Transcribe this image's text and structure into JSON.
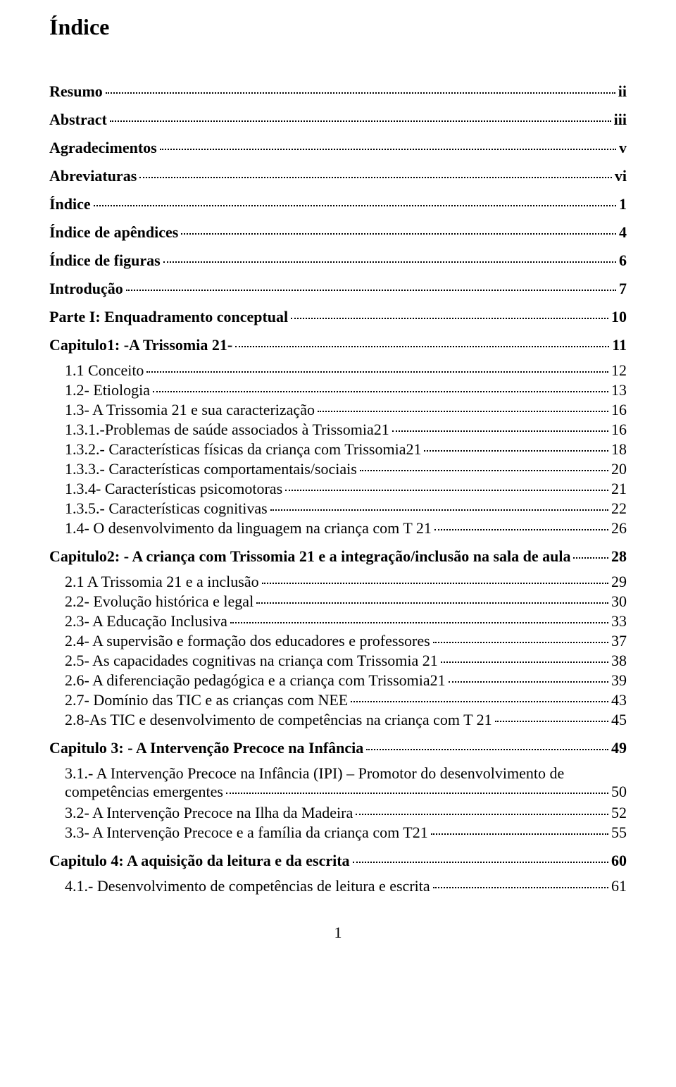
{
  "title": "Índice",
  "footer_page": "1",
  "entries": [
    {
      "level": 0,
      "label": "Resumo",
      "page": "ii"
    },
    {
      "level": 0,
      "label": "Abstract",
      "page": "iii"
    },
    {
      "level": 0,
      "label": "Agradecimentos",
      "page": "v"
    },
    {
      "level": 0,
      "label": "Abreviaturas",
      "page": "vi"
    },
    {
      "level": 0,
      "label": "Índice",
      "page": "1"
    },
    {
      "level": 0,
      "label": "Índice de apêndices",
      "page": "4"
    },
    {
      "level": 0,
      "label": "Índice de figuras",
      "page": "6"
    },
    {
      "level": 0,
      "label": "Introdução",
      "page": "7"
    },
    {
      "level": 0,
      "label": "Parte I: Enquadramento conceptual",
      "page": "10"
    },
    {
      "level": 0,
      "label": "Capitulo1: -A Trissomia 21-",
      "page": "11"
    },
    {
      "level": 1,
      "label": "1.1 Conceito",
      "page": "12"
    },
    {
      "level": 1,
      "label": "1.2- Etiologia",
      "page": "13"
    },
    {
      "level": 1,
      "label": "1.3- A Trissomia 21 e sua caracterização",
      "page": "16"
    },
    {
      "level": 2,
      "label": "1.3.1.-Problemas de saúde associados à Trissomia21",
      "page": "16"
    },
    {
      "level": 2,
      "label": "1.3.2.- Características físicas da criança com Trissomia21",
      "page": "18"
    },
    {
      "level": 2,
      "label": "1.3.3.- Características comportamentais/sociais",
      "page": "20"
    },
    {
      "level": 2,
      "label": "1.3.4- Características psicomotoras",
      "page": "21"
    },
    {
      "level": 2,
      "label": "1.3.5.- Características cognitivas",
      "page": "22"
    },
    {
      "level": 1,
      "label": "1.4- O desenvolvimento da linguagem na criança com T 21",
      "page": "26"
    },
    {
      "level": 0,
      "label": "Capitulo2: - A criança com Trissomia 21 e a integração/inclusão na sala de aula",
      "page": "28"
    },
    {
      "level": 1,
      "label": "2.1 A Trissomia 21 e a inclusão",
      "page": "29"
    },
    {
      "level": 1,
      "label": "2.2- Evolução histórica e legal",
      "page": "30"
    },
    {
      "level": 1,
      "label": "2.3- A Educação Inclusiva",
      "page": "33"
    },
    {
      "level": 1,
      "label": "2.4- A supervisão e formação dos educadores e professores",
      "page": "37"
    },
    {
      "level": 1,
      "label": "2.5- As capacidades cognitivas na criança com Trissomia 21",
      "page": "38"
    },
    {
      "level": 1,
      "label": "2.6- A diferenciação pedagógica e a criança com Trissomia21",
      "page": "39"
    },
    {
      "level": 1,
      "label": "2.7- Domínio das TIC e as crianças com NEE",
      "page": "43"
    },
    {
      "level": 1,
      "label": "2.8-As TIC e desenvolvimento de competências na criança com T 21",
      "page": "45"
    },
    {
      "level": 0,
      "label": "Capitulo 3: - A Intervenção Precoce na Infância",
      "page": "49"
    },
    {
      "level": 1,
      "wrap": true,
      "pre": "3.1.- A Intervenção Precoce na Infância (IPI) – Promotor do desenvolvimento de",
      "label": "competências emergentes",
      "page": "50"
    },
    {
      "level": 1,
      "label": "3.2- A Intervenção Precoce na Ilha da Madeira",
      "page": "52"
    },
    {
      "level": 1,
      "label": "3.3- A Intervenção Precoce e a família da criança com T21",
      "page": "55"
    },
    {
      "level": 0,
      "label": "Capitulo 4: A aquisição da leitura e da escrita",
      "page": "60"
    },
    {
      "level": 1,
      "label": "4.1.- Desenvolvimento de competências de leitura e escrita",
      "page": "61"
    }
  ]
}
